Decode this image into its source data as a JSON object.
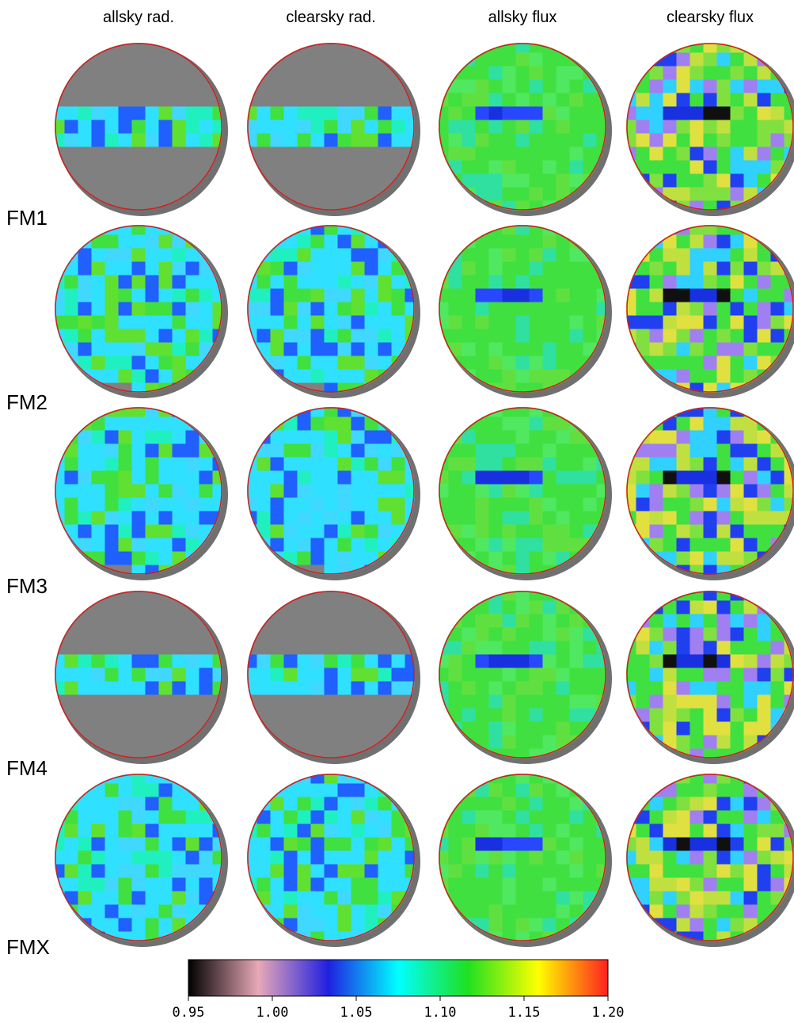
{
  "columns": [
    "allsky rad.",
    "clearsky rad.",
    "allsky flux",
    "clearsky flux"
  ],
  "rows": [
    "FM1",
    "FM2",
    "FM3",
    "FM4",
    "FMX"
  ],
  "colorbar": {
    "lim": [
      0.95,
      1.2
    ],
    "ticks": [
      0.95,
      {
        "value": 1.0,
        "label": "1.00"
      },
      1.05,
      {
        "value": 1.1,
        "label": "1.10"
      },
      1.15,
      {
        "value": 1.2,
        "label": "1.20"
      }
    ],
    "colors": [
      "#000000",
      "#e8a8b8",
      "#2020e0",
      "#00ffff",
      "#20e020",
      "#ffff00",
      "#ff2020"
    ]
  }
}
